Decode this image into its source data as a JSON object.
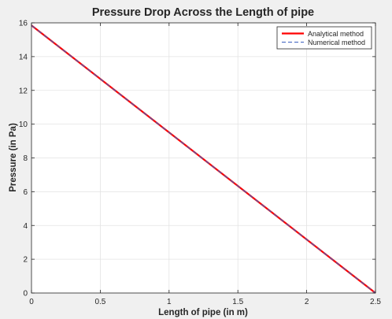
{
  "chart_data": {
    "type": "line",
    "title": "Pressure Drop Across the Length of pipe",
    "xlabel": "Length of pipe (in m)",
    "ylabel": "Pressure (in Pa)",
    "xlim": [
      0,
      2.5
    ],
    "ylim": [
      0,
      16
    ],
    "xticks": [
      0,
      0.5,
      1,
      1.5,
      2,
      2.5
    ],
    "xtick_labels": [
      "0",
      "0.5",
      "1",
      "1.5",
      "2",
      "2.5"
    ],
    "yticks": [
      0,
      2,
      4,
      6,
      8,
      10,
      12,
      14,
      16
    ],
    "ytick_labels": [
      "0",
      "2",
      "4",
      "6",
      "8",
      "10",
      "12",
      "14",
      "16"
    ],
    "grid": true,
    "legend_position": "top-right",
    "series": [
      {
        "name": "Analytical method",
        "x": [
          0,
          2.5
        ],
        "y": [
          15.85,
          0
        ],
        "color": "#ff0000",
        "style": "solid"
      },
      {
        "name": "Numerical method",
        "x": [
          0,
          2.5
        ],
        "y": [
          15.85,
          0
        ],
        "color": "#3a5fbf",
        "style": "dashed"
      }
    ]
  }
}
